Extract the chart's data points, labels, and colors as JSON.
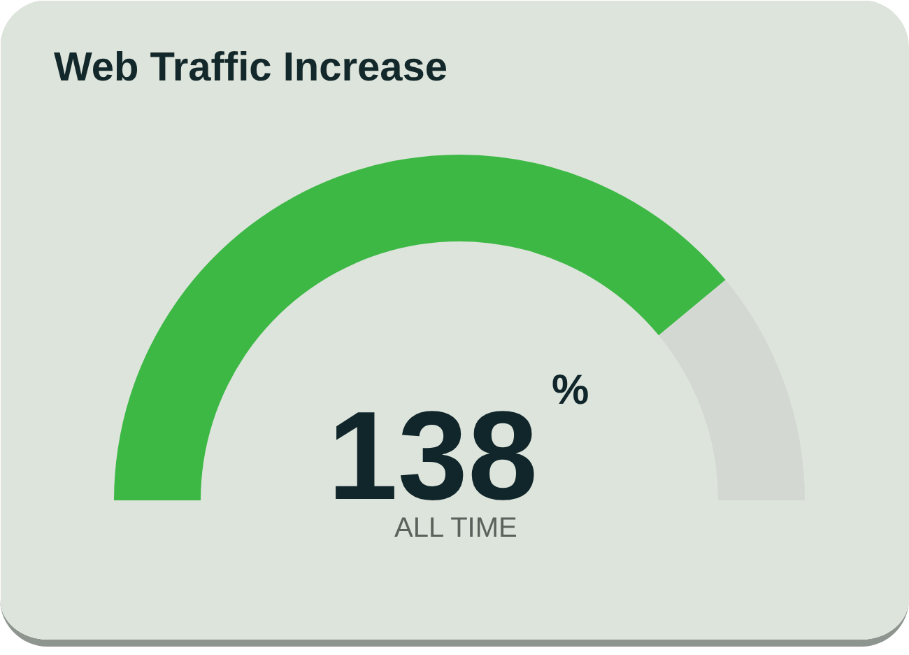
{
  "chart_data": {
    "type": "donut",
    "title": "Web Traffic Increase",
    "categories": [
      null,
      null
    ],
    "values": [
      78,
      22
    ],
    "colors": [
      "#3db845",
      "#d3d9d2"
    ],
    "annotations": [
      "138$^{%}$",
      "ALL TIME"
    ]
  }
}
